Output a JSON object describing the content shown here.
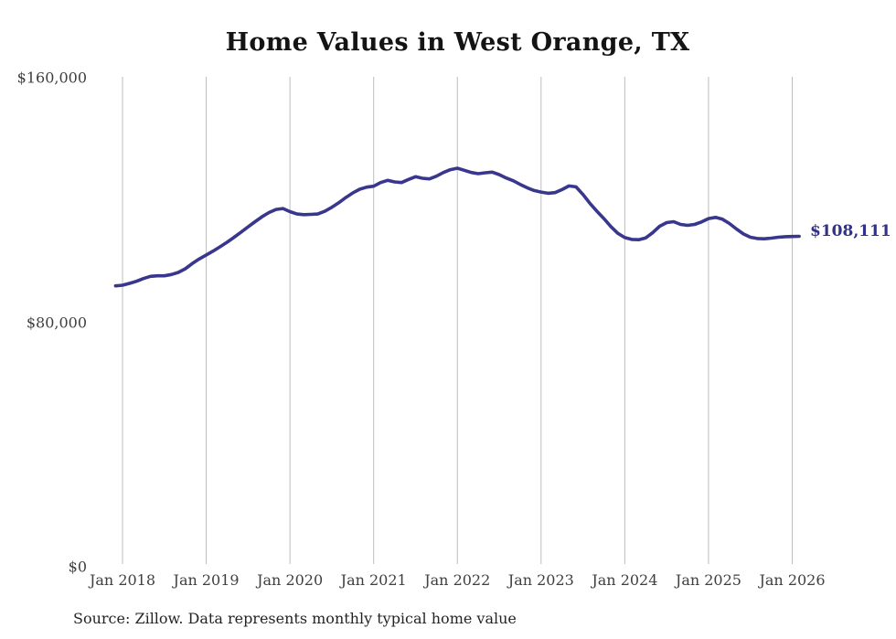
{
  "source": "Source: Zillow. Data represents monthly typical home value",
  "chart_data": {
    "type": "line",
    "title": "Home Values in West Orange, TX",
    "end_label": "$108,111",
    "latest_value": 108111,
    "xlabel": "",
    "ylabel": "",
    "ylim": [
      0,
      160000
    ],
    "grid": "vertical-only",
    "legend": "none",
    "y_ticks": [
      {
        "label": "$0",
        "value": 0
      },
      {
        "label": "$80,000",
        "value": 80000
      },
      {
        "label": "$160,000",
        "value": 160000
      }
    ],
    "x_ticks": [
      "Jan 2018",
      "Jan 2019",
      "Jan 2020",
      "Jan 2021",
      "Jan 2022",
      "Jan 2023",
      "Jan 2024",
      "Jan 2025",
      "Jan 2026"
    ],
    "series": [
      {
        "name": "Monthly typical home value",
        "months": [
          "2017-12",
          "2018-01",
          "2018-02",
          "2018-03",
          "2018-04",
          "2018-05",
          "2018-06",
          "2018-07",
          "2018-08",
          "2018-09",
          "2018-10",
          "2018-11",
          "2018-12",
          "2019-01",
          "2019-02",
          "2019-03",
          "2019-04",
          "2019-05",
          "2019-06",
          "2019-07",
          "2019-08",
          "2019-09",
          "2019-10",
          "2019-11",
          "2019-12",
          "2020-01",
          "2020-02",
          "2020-03",
          "2020-04",
          "2020-05",
          "2020-06",
          "2020-07",
          "2020-08",
          "2020-09",
          "2020-10",
          "2020-11",
          "2020-12",
          "2021-01",
          "2021-02",
          "2021-03",
          "2021-04",
          "2021-05",
          "2021-06",
          "2021-07",
          "2021-08",
          "2021-09",
          "2021-10",
          "2021-11",
          "2021-12",
          "2022-01",
          "2022-02",
          "2022-03",
          "2022-04",
          "2022-05",
          "2022-06",
          "2022-07",
          "2022-08",
          "2022-09",
          "2022-10",
          "2022-11",
          "2022-12",
          "2023-01",
          "2023-02",
          "2023-03",
          "2023-04",
          "2023-05",
          "2023-06",
          "2023-07",
          "2023-08",
          "2023-09",
          "2023-10",
          "2023-11",
          "2023-12",
          "2024-01",
          "2024-02",
          "2024-03",
          "2024-04",
          "2024-05",
          "2024-06",
          "2024-07",
          "2024-08",
          "2024-09",
          "2024-10",
          "2024-11",
          "2024-12",
          "2025-01",
          "2025-02",
          "2025-03",
          "2025-04",
          "2025-05",
          "2025-06",
          "2025-07",
          "2025-08",
          "2025-09",
          "2025-10",
          "2025-11",
          "2025-12",
          "2026-01",
          "2026-02"
        ],
        "values": [
          91900,
          92100,
          92700,
          93400,
          94300,
          95000,
          95200,
          95200,
          95600,
          96300,
          97500,
          99200,
          100700,
          102000,
          103300,
          104700,
          106200,
          107800,
          109500,
          111200,
          112900,
          114500,
          115900,
          116900,
          117200,
          116200,
          115400,
          115200,
          115300,
          115400,
          116300,
          117600,
          119100,
          120800,
          122300,
          123500,
          124200,
          124500,
          125700,
          126400,
          125900,
          125700,
          126700,
          127600,
          127100,
          126900,
          127800,
          129000,
          129900,
          130400,
          129700,
          129000,
          128600,
          128900,
          129100,
          128300,
          127200,
          126300,
          125100,
          124000,
          123100,
          122600,
          122200,
          122400,
          123400,
          124600,
          124300,
          121800,
          118900,
          116300,
          113900,
          111300,
          109100,
          107700,
          107100,
          107000,
          107600,
          109300,
          111400,
          112600,
          112900,
          112000,
          111700,
          112000,
          112800,
          113900,
          114300,
          113700,
          112300,
          110500,
          108900,
          107800,
          107400,
          107300,
          107500,
          107800,
          108000,
          108060,
          108111
        ]
      }
    ],
    "colors": {
      "line": "#39368e",
      "end_label": "#31308a",
      "gridline": "#bdbdbd",
      "tick_text": "#3f3f3f",
      "title_text": "#141414",
      "source_text": "#242424",
      "background": "#ffffff"
    }
  }
}
